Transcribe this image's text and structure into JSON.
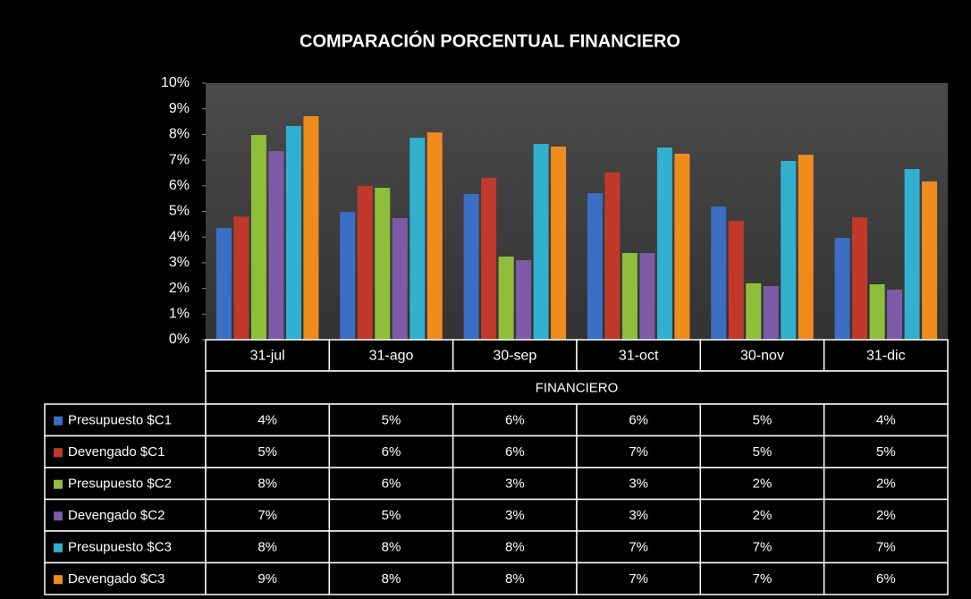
{
  "chart_data": {
    "type": "bar",
    "title": "COMPARACIÓN PORCENTUAL  FINANCIERO",
    "x_label": "FINANCIERO",
    "categories": [
      "31-jul",
      "31-ago",
      "30-sep",
      "31-oct",
      "30-nov",
      "31-dic"
    ],
    "ylim": [
      0,
      10
    ],
    "yticks": [
      {
        "value": 0,
        "label": "0%"
      },
      {
        "value": 1,
        "label": "1%"
      },
      {
        "value": 2,
        "label": "2%"
      },
      {
        "value": 3,
        "label": "3%"
      },
      {
        "value": 4,
        "label": "4%"
      },
      {
        "value": 5,
        "label": "5%"
      },
      {
        "value": 6,
        "label": "6%"
      },
      {
        "value": 7,
        "label": "7%"
      },
      {
        "value": 8,
        "label": "8%"
      },
      {
        "value": 9,
        "label": "9%"
      },
      {
        "value": 10,
        "label": "10%"
      }
    ],
    "grid": false,
    "series": [
      {
        "name": "Presupuesto $C1",
        "color": "#3a6fc4",
        "values": [
          4.36,
          4.98,
          5.68,
          5.71,
          5.19,
          3.97
        ],
        "value_labels": [
          "4%",
          "5%",
          "6%",
          "6%",
          "5%",
          "4%"
        ]
      },
      {
        "name": "Devengado $C1",
        "color": "#c0392b",
        "values": [
          4.8,
          5.99,
          6.31,
          6.52,
          4.63,
          4.77
        ],
        "value_labels": [
          "5%",
          "6%",
          "6%",
          "7%",
          "5%",
          "5%"
        ]
      },
      {
        "name": "Presupuesto $C2",
        "color": "#8fbf3a",
        "values": [
          7.98,
          5.92,
          3.24,
          3.38,
          2.2,
          2.16
        ],
        "value_labels": [
          "8%",
          "6%",
          "3%",
          "3%",
          "2%",
          "2%"
        ]
      },
      {
        "name": "Devengado $C2",
        "color": "#7d5ba6",
        "values": [
          7.35,
          4.74,
          3.1,
          3.38,
          2.09,
          1.95
        ],
        "value_labels": [
          "7%",
          "5%",
          "3%",
          "3%",
          "2%",
          "2%"
        ]
      },
      {
        "name": "Presupuesto $C3",
        "color": "#31b0cf",
        "values": [
          8.33,
          7.87,
          7.63,
          7.49,
          6.97,
          6.65
        ],
        "value_labels": [
          "8%",
          "8%",
          "8%",
          "7%",
          "7%",
          "7%"
        ]
      },
      {
        "name": "Devengado $C3",
        "color": "#f08c1e",
        "values": [
          8.71,
          8.08,
          7.53,
          7.25,
          7.21,
          6.17
        ],
        "value_labels": [
          "9%",
          "8%",
          "8%",
          "7%",
          "7%",
          "6%"
        ]
      }
    ]
  }
}
